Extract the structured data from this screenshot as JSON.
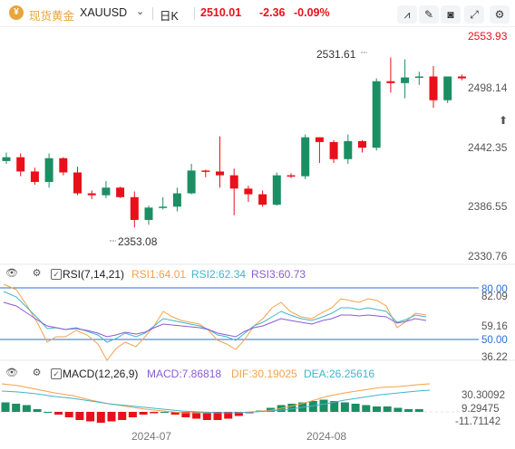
{
  "header": {
    "title": "现货黄金",
    "symbol": "XAUUSD",
    "period": "日K",
    "price": "2510.01",
    "change": "-2.36",
    "change_pct": "-0.09%",
    "toolbar_icons": [
      "compare-icon",
      "draw-icon",
      "camera-icon",
      "fullscreen-icon"
    ]
  },
  "colors": {
    "up": "#1b8f63",
    "down": "#e8101a",
    "axis_text": "#555555",
    "accent_price": "#e8101a"
  },
  "main_chart": {
    "y_labels": [
      "2553.93",
      "2498.14",
      "2442.35",
      "2386.55",
      "2330.76"
    ],
    "y_ticks": [
      2553.93,
      2498.14,
      2442.35,
      2386.55,
      2330.76
    ],
    "ymin": 2320,
    "ymax": 2562,
    "current_price_label": "2553.93",
    "annotation_high": "2531.61",
    "annotation_low": "2353.08",
    "x_labels": [
      "2024-07",
      "2024-08"
    ]
  },
  "rsi": {
    "label": "RSI(7,14,21)",
    "rsi1": "RSI1:64.01",
    "rsi2": "RSI2:62.34",
    "rsi3": "RSI3:60.73",
    "y_labels": [
      "80.00",
      "82.09",
      "59.16",
      "50.00",
      "36.22"
    ]
  },
  "macd": {
    "label": "MACD(12,26,9)",
    "macd": "MACD:7.86818",
    "dif": "DIF:30.19025",
    "dea": "DEA:26.25616",
    "y_labels": [
      "30.30092",
      "9.29475",
      "-11.71142"
    ]
  },
  "chart_data": {
    "type": "candlestick",
    "candles": [
      {
        "o": 2423,
        "h": 2432,
        "l": 2420,
        "c": 2427
      },
      {
        "o": 2427,
        "h": 2431,
        "l": 2407,
        "c": 2412
      },
      {
        "o": 2412,
        "h": 2416,
        "l": 2398,
        "c": 2401
      },
      {
        "o": 2401,
        "h": 2431,
        "l": 2395,
        "c": 2426
      },
      {
        "o": 2426,
        "h": 2427,
        "l": 2408,
        "c": 2411
      },
      {
        "o": 2411,
        "h": 2417,
        "l": 2387,
        "c": 2389
      },
      {
        "o": 2389,
        "h": 2392,
        "l": 2383,
        "c": 2387
      },
      {
        "o": 2387,
        "h": 2402,
        "l": 2384,
        "c": 2395
      },
      {
        "o": 2395,
        "h": 2396,
        "l": 2384,
        "c": 2385
      },
      {
        "o": 2385,
        "h": 2391,
        "l": 2353,
        "c": 2361
      },
      {
        "o": 2361,
        "h": 2376,
        "l": 2356,
        "c": 2374
      },
      {
        "o": 2374,
        "h": 2385,
        "l": 2372,
        "c": 2375
      },
      {
        "o": 2375,
        "h": 2395,
        "l": 2370,
        "c": 2389
      },
      {
        "o": 2389,
        "h": 2420,
        "l": 2388,
        "c": 2413
      },
      {
        "o": 2413,
        "h": 2414,
        "l": 2406,
        "c": 2412
      },
      {
        "o": 2412,
        "h": 2449,
        "l": 2395,
        "c": 2408
      },
      {
        "o": 2408,
        "h": 2415,
        "l": 2366,
        "c": 2394
      },
      {
        "o": 2394,
        "h": 2397,
        "l": 2380,
        "c": 2388
      },
      {
        "o": 2388,
        "h": 2392,
        "l": 2375,
        "c": 2377
      },
      {
        "o": 2377,
        "h": 2411,
        "l": 2376,
        "c": 2408
      },
      {
        "o": 2408,
        "h": 2410,
        "l": 2405,
        "c": 2407
      },
      {
        "o": 2407,
        "h": 2451,
        "l": 2404,
        "c": 2448
      },
      {
        "o": 2448,
        "h": 2448,
        "l": 2421,
        "c": 2443
      },
      {
        "o": 2443,
        "h": 2445,
        "l": 2421,
        "c": 2425
      },
      {
        "o": 2425,
        "h": 2451,
        "l": 2420,
        "c": 2444
      },
      {
        "o": 2444,
        "h": 2445,
        "l": 2432,
        "c": 2437
      },
      {
        "o": 2437,
        "h": 2510,
        "l": 2434,
        "c": 2507
      },
      {
        "o": 2507,
        "h": 2532,
        "l": 2495,
        "c": 2505
      },
      {
        "o": 2505,
        "h": 2530,
        "l": 2489,
        "c": 2511
      },
      {
        "o": 2511,
        "h": 2517,
        "l": 2503,
        "c": 2512
      },
      {
        "o": 2512,
        "h": 2523,
        "l": 2479,
        "c": 2487
      },
      {
        "o": 2487,
        "h": 2512,
        "l": 2484,
        "c": 2512
      },
      {
        "o": 2512,
        "h": 2514,
        "l": 2508,
        "c": 2510
      }
    ]
  }
}
